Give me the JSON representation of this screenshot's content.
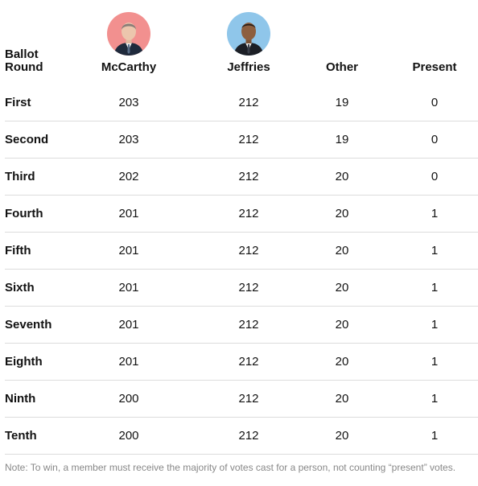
{
  "chart_data": {
    "type": "table",
    "columns": [
      "Ballot Round",
      "McCarthy",
      "Jeffries",
      "Other",
      "Present"
    ],
    "rows": [
      {
        "round": "First",
        "mccarthy": 203,
        "jeffries": 212,
        "other": 19,
        "present": 0
      },
      {
        "round": "Second",
        "mccarthy": 203,
        "jeffries": 212,
        "other": 19,
        "present": 0
      },
      {
        "round": "Third",
        "mccarthy": 202,
        "jeffries": 212,
        "other": 20,
        "present": 0
      },
      {
        "round": "Fourth",
        "mccarthy": 201,
        "jeffries": 212,
        "other": 20,
        "present": 1
      },
      {
        "round": "Fifth",
        "mccarthy": 201,
        "jeffries": 212,
        "other": 20,
        "present": 1
      },
      {
        "round": "Sixth",
        "mccarthy": 201,
        "jeffries": 212,
        "other": 20,
        "present": 1
      },
      {
        "round": "Seventh",
        "mccarthy": 201,
        "jeffries": 212,
        "other": 20,
        "present": 1
      },
      {
        "round": "Eighth",
        "mccarthy": 201,
        "jeffries": 212,
        "other": 20,
        "present": 1
      },
      {
        "round": "Ninth",
        "mccarthy": 200,
        "jeffries": 212,
        "other": 20,
        "present": 1
      },
      {
        "round": "Tenth",
        "mccarthy": 200,
        "jeffries": 212,
        "other": 20,
        "present": 1
      }
    ],
    "note": "Note: To win, a member must receive the majority of votes cast for a person, not counting “present” votes."
  },
  "headers": {
    "round_line1": "Ballot",
    "round_line2": "Round",
    "mccarthy": "McCarthy",
    "jeffries": "Jeffries",
    "other": "Other",
    "present": "Present"
  },
  "avatars": {
    "mccarthy": {
      "icon": "mccarthy-portrait-icon",
      "bg": "#f2908f"
    },
    "jeffries": {
      "icon": "jeffries-portrait-icon",
      "bg": "#8fc6ea"
    }
  },
  "colors": {
    "text": "#121212",
    "rule": "#dcdcdc",
    "note": "#888888"
  }
}
